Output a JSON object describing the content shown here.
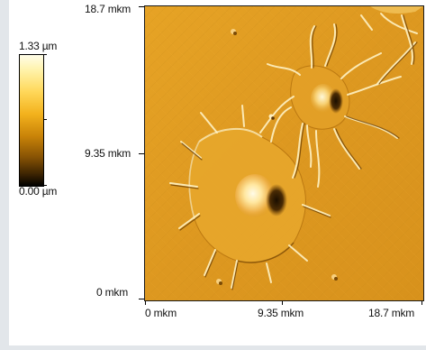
{
  "colorbar": {
    "max_label": "1.33 µm",
    "min_label": "0.00 µm",
    "colors": [
      "#fffde8",
      "#ffd85a",
      "#f3b21d",
      "#c98308",
      "#875304",
      "#000000"
    ]
  },
  "y_axis": {
    "ticks": [
      "18.7 mkm",
      "9.35 mkm",
      "0 mkm"
    ]
  },
  "x_axis": {
    "ticks": [
      "0 mkm",
      "9.35 mkm",
      "18.7 mkm"
    ]
  },
  "image": {
    "subject": "atomic-force microscopy surface image of cells with spreading processes",
    "base_color": "#e09a20"
  }
}
